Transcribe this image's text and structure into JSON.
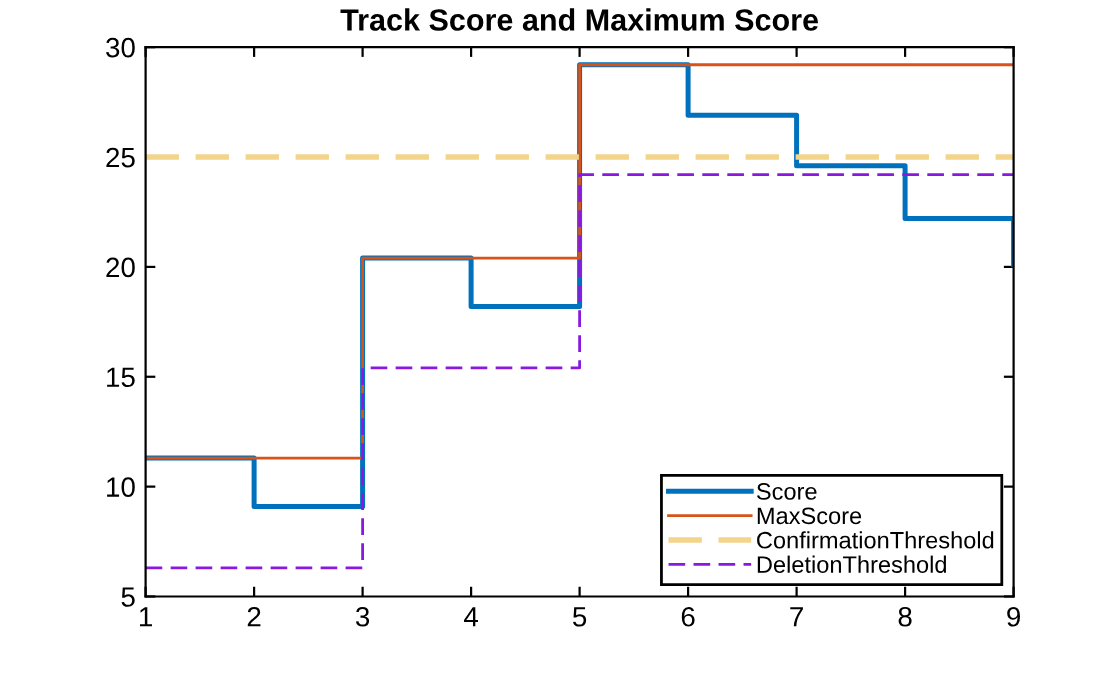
{
  "chart_data": {
    "type": "step",
    "title": "Track Score and Maximum Score",
    "x": [
      1,
      2,
      3,
      4,
      5,
      6,
      7,
      8,
      9
    ],
    "series": [
      {
        "name": "Score",
        "color": "#0072bd",
        "values": [
          11.3,
          9.1,
          20.4,
          18.2,
          29.2,
          26.9,
          24.6,
          22.2,
          20.1
        ]
      },
      {
        "name": "MaxScore",
        "color": "#d95319",
        "values": [
          11.3,
          11.3,
          20.4,
          20.4,
          29.2,
          29.2,
          29.2,
          29.2,
          29.2
        ]
      },
      {
        "name": "ConfirmationThreshold",
        "color": "#f2d48a",
        "type": "line",
        "line_style": "dashed",
        "x": [
          1,
          9
        ],
        "values": [
          25,
          25
        ]
      },
      {
        "name": "DeletionThreshold",
        "color": "#8a19e0",
        "line_style": "dashed",
        "values": [
          6.3,
          6.3,
          15.4,
          15.4,
          24.2,
          24.2,
          24.2,
          24.2,
          24.2
        ]
      }
    ],
    "xlim": [
      1,
      9
    ],
    "xticks": [
      1,
      2,
      3,
      4,
      5,
      6,
      7,
      8,
      9
    ],
    "ylim": [
      5,
      30
    ],
    "yticks": [
      5,
      10,
      15,
      20,
      25,
      30
    ],
    "legend": "bottom right"
  }
}
